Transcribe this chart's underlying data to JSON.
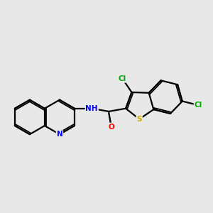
{
  "background_color": "#e8e8e8",
  "bond_color": "#000000",
  "atom_colors": {
    "N": "#0000ff",
    "O": "#ff0000",
    "S": "#ccaa00",
    "Cl": "#00aa00",
    "C": "#000000"
  },
  "figsize": [
    3.0,
    3.0
  ],
  "dpi": 100
}
